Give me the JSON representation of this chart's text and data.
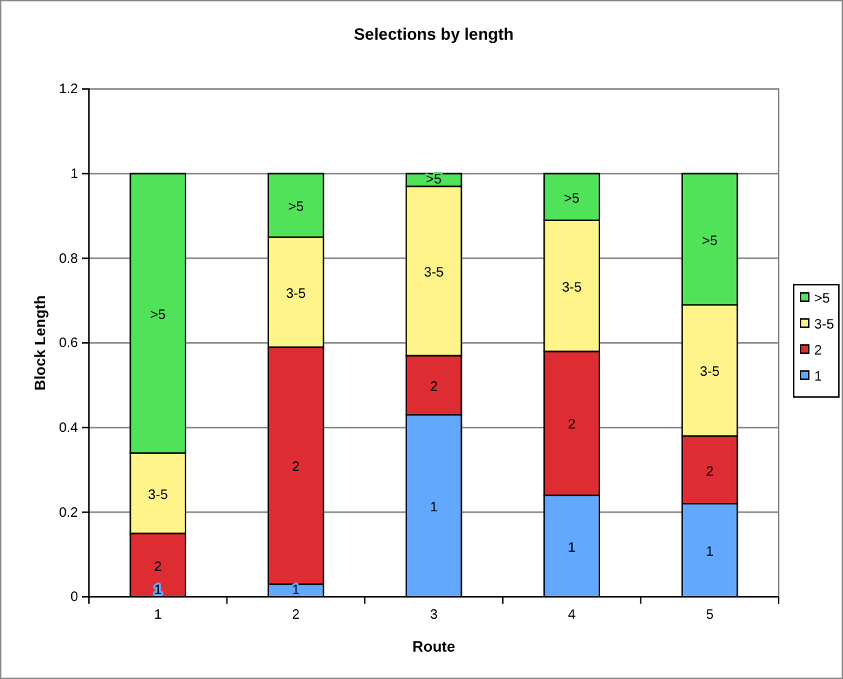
{
  "chart_data": {
    "type": "bar",
    "title": "Selections by length",
    "xlabel": "Route",
    "ylabel": "Block Length",
    "categories": [
      "1",
      "2",
      "3",
      "4",
      "5"
    ],
    "series": [
      {
        "name": "1",
        "color": "#63a8ff",
        "values": [
          0,
          0.03,
          0.43,
          0.24,
          0.22
        ]
      },
      {
        "name": "2",
        "color": "#dd2d33",
        "values": [
          0.15,
          0.56,
          0.14,
          0.34,
          0.16
        ]
      },
      {
        "name": "3-5",
        "color": "#fff48a",
        "values": [
          0.19,
          0.26,
          0.4,
          0.31,
          0.31
        ]
      },
      {
        "name": ">5",
        "color": "#50e35a",
        "values": [
          0.66,
          0.15,
          0.03,
          0.11,
          0.31
        ]
      }
    ],
    "stacked": true,
    "ylim": [
      0,
      1.2
    ],
    "yticks": [
      0,
      0.2,
      0.4,
      0.6,
      0.8,
      1,
      1.2
    ],
    "grid": "y",
    "legend": "right"
  }
}
